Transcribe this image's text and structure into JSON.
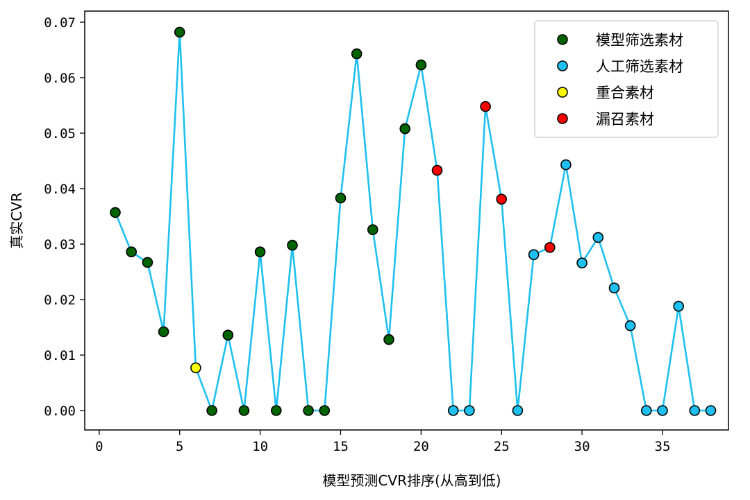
{
  "chart_data": {
    "type": "scatter",
    "title": "",
    "xlabel": "模型预测CVR排序(从高到低)",
    "ylabel": "真实CVR",
    "xlim": [
      -0.9,
      39.1
    ],
    "ylim": [
      -0.0035,
      0.072
    ],
    "xticks": [
      0,
      5,
      10,
      15,
      20,
      25,
      30,
      35
    ],
    "xtick_labels": [
      "0",
      "5",
      "10",
      "15",
      "20",
      "25",
      "30",
      "35"
    ],
    "yticks": [
      0.0,
      0.01,
      0.02,
      0.03,
      0.04,
      0.05,
      0.06,
      0.07
    ],
    "ytick_labels": [
      "0.00",
      "0.01",
      "0.02",
      "0.03",
      "0.04",
      "0.05",
      "0.06",
      "0.07"
    ],
    "grid": false,
    "legend_position": "top-right",
    "line": {
      "color": "#1ec0f0",
      "x": [
        1,
        2,
        3,
        4,
        5,
        6,
        7,
        8,
        9,
        10,
        11,
        12,
        13,
        14,
        15,
        16,
        17,
        18,
        19,
        20,
        21,
        22,
        23,
        24,
        25,
        26,
        27,
        28,
        29,
        30,
        31,
        32,
        33,
        34,
        35,
        36,
        37,
        38
      ],
      "y": [
        0.0357,
        0.0286,
        0.0267,
        0.0142,
        0.0682,
        0.0077,
        0.0,
        0.0136,
        0.0,
        0.0286,
        0.0,
        0.0298,
        0.0,
        0.0,
        0.0383,
        0.0643,
        0.0326,
        0.0128,
        0.0508,
        0.0623,
        0.0433,
        0.0,
        0.0,
        0.0548,
        0.0381,
        0.0,
        0.0281,
        0.0294,
        0.0443,
        0.0266,
        0.0312,
        0.0221,
        0.0153,
        0.0,
        0.0,
        0.0188,
        0.0,
        0.0
      ]
    },
    "series": [
      {
        "name": "模型筛选素材",
        "color": "#006400",
        "x": [
          1,
          2,
          3,
          4,
          5,
          7,
          8,
          9,
          10,
          11,
          12,
          13,
          14,
          15,
          16,
          17,
          18,
          19,
          20
        ],
        "y": [
          0.0357,
          0.0286,
          0.0267,
          0.0142,
          0.0682,
          0.0,
          0.0136,
          0.0,
          0.0286,
          0.0,
          0.0298,
          0.0,
          0.0,
          0.0383,
          0.0643,
          0.0326,
          0.0128,
          0.0508,
          0.0623
        ]
      },
      {
        "name": "人工筛选素材",
        "color": "#1ec0f0",
        "x": [
          22,
          23,
          26,
          27,
          29,
          30,
          31,
          32,
          33,
          34,
          35,
          36,
          37,
          38
        ],
        "y": [
          0.0,
          0.0,
          0.0,
          0.0281,
          0.0443,
          0.0266,
          0.0312,
          0.0221,
          0.0153,
          0.0,
          0.0,
          0.0188,
          0.0,
          0.0
        ]
      },
      {
        "name": "重合素材",
        "color": "#ffff00",
        "x": [
          6
        ],
        "y": [
          0.0077
        ]
      },
      {
        "name": "漏召素材",
        "color": "#ff0000",
        "x": [
          21,
          24,
          25,
          28
        ],
        "y": [
          0.0433,
          0.0548,
          0.0381,
          0.0294
        ]
      }
    ]
  }
}
